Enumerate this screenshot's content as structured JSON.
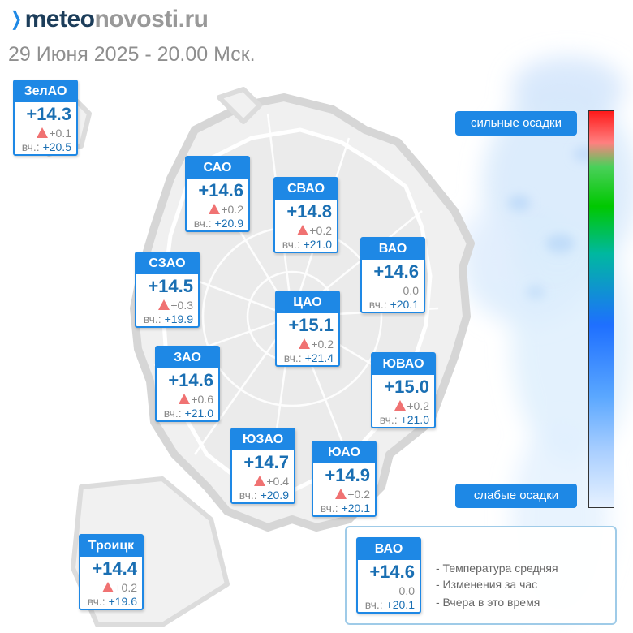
{
  "brand": {
    "part1": "meteo",
    "part2": "novosti.ru"
  },
  "title": "29 Июня 2025 - 20.00 Мск.",
  "precip_scale": {
    "top_label": "сильные осадки",
    "bottom_label": "слабые осадки"
  },
  "colors": {
    "accent": "#1e88e5",
    "temp_text": "#1a6fb3",
    "rise_arrow": "#f07272"
  },
  "yesterday_label": "вч.:",
  "districts": [
    {
      "name": "ЗелАО",
      "temp": "+14.3",
      "change": "+0.1",
      "trend": "up",
      "yesterday": "+20.5"
    },
    {
      "name": "САО",
      "temp": "+14.6",
      "change": "+0.2",
      "trend": "up",
      "yesterday": "+20.9"
    },
    {
      "name": "СВАО",
      "temp": "+14.8",
      "change": "+0.2",
      "trend": "up",
      "yesterday": "+21.0"
    },
    {
      "name": "ВАО",
      "temp": "+14.6",
      "change": "0.0",
      "trend": "none",
      "yesterday": "+20.1"
    },
    {
      "name": "СЗАО",
      "temp": "+14.5",
      "change": "+0.3",
      "trend": "up",
      "yesterday": "+19.9"
    },
    {
      "name": "ЦАО",
      "temp": "+15.1",
      "change": "+0.2",
      "trend": "up",
      "yesterday": "+21.4"
    },
    {
      "name": "ЗАО",
      "temp": "+14.6",
      "change": "+0.6",
      "trend": "up",
      "yesterday": "+21.0"
    },
    {
      "name": "ЮВАО",
      "temp": "+15.0",
      "change": "+0.2",
      "trend": "up",
      "yesterday": "+21.0"
    },
    {
      "name": "ЮЗАО",
      "temp": "+14.7",
      "change": "+0.4",
      "trend": "up",
      "yesterday": "+20.9"
    },
    {
      "name": "ЮАО",
      "temp": "+14.9",
      "change": "+0.2",
      "trend": "up",
      "yesterday": "+20.1"
    },
    {
      "name": "Троицк",
      "temp": "+14.4",
      "change": "+0.2",
      "trend": "up",
      "yesterday": "+19.6"
    }
  ],
  "legend": {
    "sample": {
      "name": "ВАО",
      "temp": "+14.6",
      "change": "0.0",
      "yesterday": "+20.1"
    },
    "yesterday_label": "вч.:",
    "lines": [
      "- Температура средняя",
      "- Изменения за час",
      "- Вчера в это время"
    ]
  }
}
